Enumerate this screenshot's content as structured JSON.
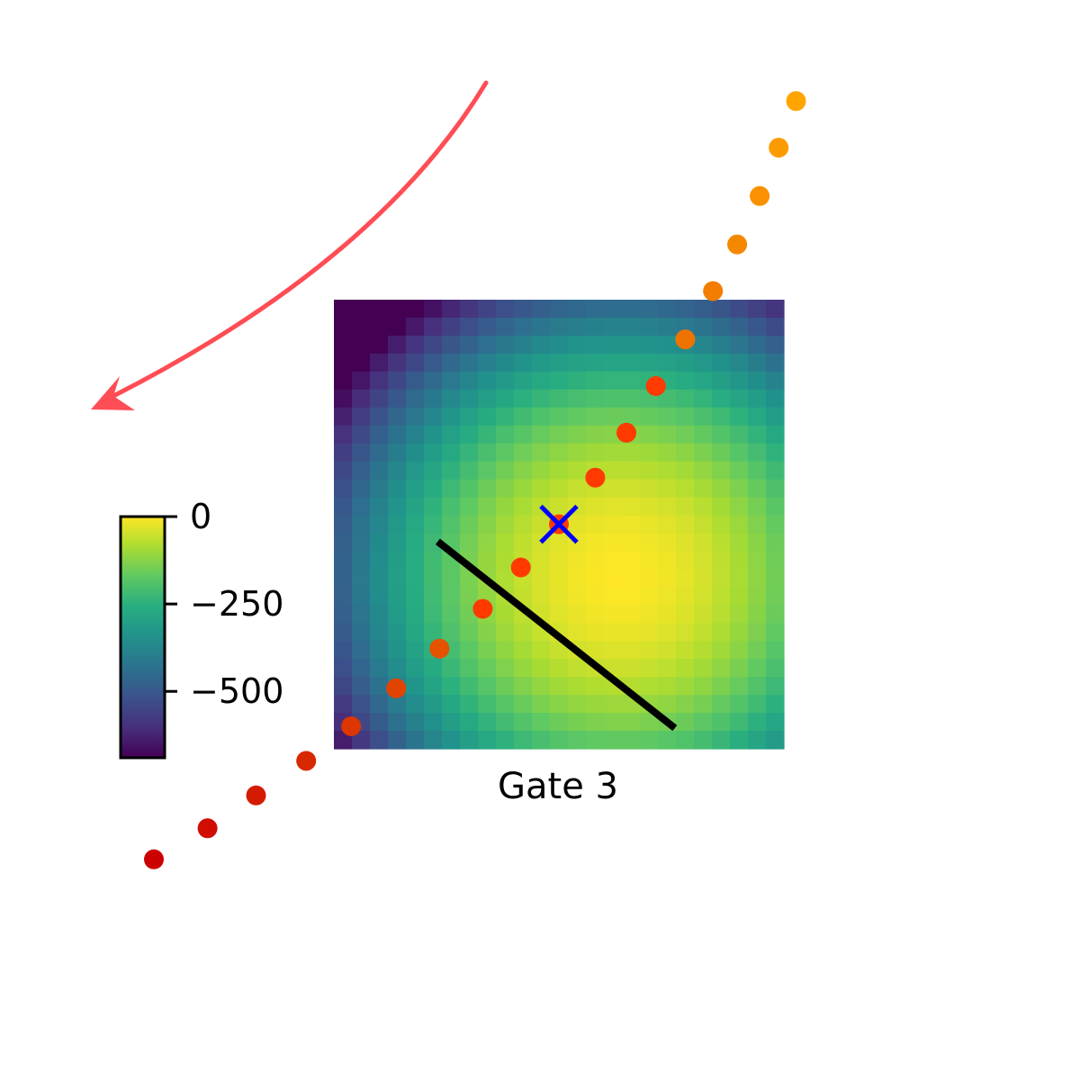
{
  "chart_data": {
    "type": "heatmap",
    "panel_title": "Gate 3",
    "heatmap": {
      "grid_size": 25,
      "peak": [
        0.35,
        -0.3
      ],
      "scale": 185,
      "extent": [
        -1.3,
        1.3
      ],
      "colormap": "viridis"
    },
    "colorbar": {
      "vmin": -690,
      "vmax": 0,
      "ticks": [
        0,
        -250,
        -500
      ],
      "tick_labels": [
        "0",
        "−250",
        "−500"
      ]
    },
    "optimum_marker": {
      "symbol": "x",
      "color": "#0000ff",
      "x": 0.0,
      "y": 0.0
    },
    "decision_line": {
      "color": "#000000",
      "x": [
        -0.7,
        0.67
      ],
      "y": [
        -0.1,
        -1.18
      ]
    },
    "trajectory": {
      "color_start": "#ffa500",
      "color_end": "#cc0000",
      "points": [
        {
          "x": 1.37,
          "y": 2.45
        },
        {
          "x": 1.27,
          "y": 2.18
        },
        {
          "x": 1.16,
          "y": 1.9
        },
        {
          "x": 1.03,
          "y": 1.62
        },
        {
          "x": 0.89,
          "y": 1.35
        },
        {
          "x": 0.73,
          "y": 1.07
        },
        {
          "x": 0.56,
          "y": 0.8
        },
        {
          "x": 0.39,
          "y": 0.53
        },
        {
          "x": 0.21,
          "y": 0.27
        },
        {
          "x": 0.0,
          "y": 0.0
        },
        {
          "x": -0.22,
          "y": -0.25
        },
        {
          "x": -0.44,
          "y": -0.49
        },
        {
          "x": -0.69,
          "y": -0.72
        },
        {
          "x": -0.94,
          "y": -0.95
        },
        {
          "x": -1.2,
          "y": -1.17
        },
        {
          "x": -1.46,
          "y": -1.37
        },
        {
          "x": -1.75,
          "y": -1.57
        },
        {
          "x": -2.03,
          "y": -1.76
        },
        {
          "x": -2.34,
          "y": -1.94
        }
      ]
    },
    "arrow": {
      "color": "#ff4d55",
      "direction": "curved, pointing down-left"
    }
  }
}
